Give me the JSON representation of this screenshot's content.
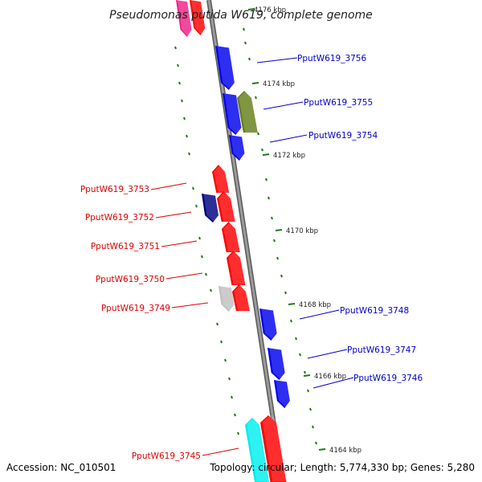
{
  "title": "Pseudomonas putida W619, complete genome",
  "footer": {
    "accession": "Accession: NC_010501",
    "summary": "Topology: circular; Length: 5,774,330 bp; Genes: 5,280"
  },
  "colors": {
    "backbone": "#8c8c8c",
    "tick": "#1a7a1a",
    "forward_label": "#0000cc",
    "reverse_label": "#dd0000"
  },
  "ticks": [
    {
      "label": "4176 kbp"
    },
    {
      "label": "4174 kbp"
    },
    {
      "label": "4172 kbp"
    },
    {
      "label": "4170 kbp"
    },
    {
      "label": "4168 kbp"
    },
    {
      "label": "4166 kbp"
    },
    {
      "label": "4164 kbp"
    }
  ],
  "genes": [
    {
      "id": "PputW619_3756",
      "strand": "forward",
      "color": "#0000ee"
    },
    {
      "id": "PputW619_3755",
      "strand": "forward",
      "color": "#0000ee"
    },
    {
      "id": "PputW619_3754",
      "strand": "forward",
      "color": "#0000ee"
    },
    {
      "id": "PputW619_3753",
      "strand": "reverse",
      "color": "#ff0000"
    },
    {
      "id": "PputW619_3752",
      "strand": "reverse",
      "color": "#ff0000"
    },
    {
      "id": "PputW619_3751",
      "strand": "reverse",
      "color": "#ff0000"
    },
    {
      "id": "PputW619_3750",
      "strand": "reverse",
      "color": "#ff0000"
    },
    {
      "id": "PputW619_3749",
      "strand": "reverse",
      "color": "#ff0000"
    },
    {
      "id": "PputW619_3748",
      "strand": "forward",
      "color": "#0000ee"
    },
    {
      "id": "PputW619_3747",
      "strand": "forward",
      "color": "#0000ee"
    },
    {
      "id": "PputW619_3746",
      "strand": "forward",
      "color": "#0000ee"
    },
    {
      "id": "PputW619_3745",
      "strand": "reverse",
      "color": "#ff0000"
    }
  ],
  "feature_colors": [
    "#ee2288",
    "#ff0000",
    "#667f1a",
    "#000080",
    "#c0c0c0",
    "#00eeee"
  ]
}
